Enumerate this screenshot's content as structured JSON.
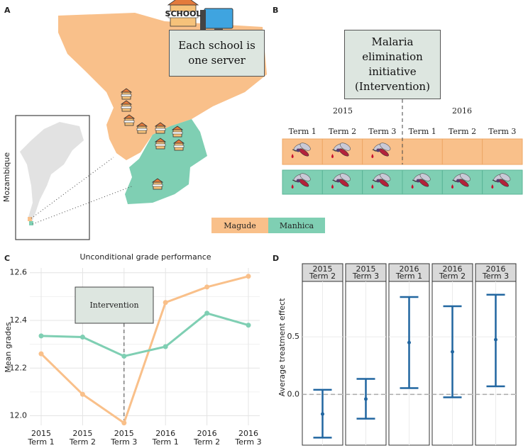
{
  "panel_labels": [
    "A",
    "B",
    "C",
    "D"
  ],
  "map": {
    "country": "Mozambique",
    "school_icon_text": "SCHOOL",
    "callout": "Each school is one server"
  },
  "diagram": {
    "intervention": "Malaria elimination initiative (Intervention)",
    "years": [
      "2015",
      "2016"
    ],
    "terms": [
      "Term 1",
      "Term 2",
      "Term 3",
      "Term 1",
      "Term 2",
      "Term 3"
    ],
    "malaria": [
      [
        true,
        true,
        true,
        false,
        false,
        false
      ],
      [
        true,
        true,
        true,
        true,
        true,
        true
      ]
    ]
  },
  "chart_data": [
    {
      "type": "line",
      "title": "Unconditional grade performance",
      "y_label": "Mean grades",
      "categories": [
        [
          "2015",
          "Term 1"
        ],
        [
          "2015",
          "Term 2"
        ],
        [
          "2015",
          "Term 3"
        ],
        [
          "2016",
          "Term 1"
        ],
        [
          "2016",
          "Term 2"
        ],
        [
          "2016",
          "Term 3"
        ]
      ],
      "series": [
        {
          "name": "Magude",
          "color": "#f9c08a",
          "values": [
            12.26,
            12.09,
            11.97,
            12.475,
            12.54,
            12.585
          ]
        },
        {
          "name": "Manhica",
          "color": "#7fcfb3",
          "values": [
            12.335,
            12.33,
            12.25,
            12.29,
            12.43,
            12.38
          ]
        }
      ],
      "annotation": "Intervention",
      "ylim": [
        11.96,
        12.62
      ],
      "yticks": [
        {
          "value": 12,
          "label": "12.0"
        },
        {
          "value": 12.2,
          "label": "12.2"
        },
        {
          "value": 12.4,
          "label": "12.4"
        },
        {
          "value": 12.6,
          "label": "12.6"
        }
      ],
      "grid": true
    },
    {
      "type": "errorbar",
      "y_label": "Average treatment effect",
      "categories": [
        [
          "2015",
          "Term 2"
        ],
        [
          "2015",
          "Term 3"
        ],
        [
          "2016",
          "Term 1"
        ],
        [
          "2016",
          "Term 2"
        ],
        [
          "2016",
          "Term 3"
        ]
      ],
      "values": [
        -0.17,
        -0.04,
        0.45,
        0.37,
        0.475
      ],
      "lower": [
        -0.375,
        -0.21,
        0.055,
        -0.025,
        0.07
      ],
      "upper": [
        0.04,
        0.135,
        0.845,
        0.765,
        0.865
      ],
      "color": "#2166a0",
      "ylim": [
        -0.44,
        0.98
      ],
      "yticks": [
        {
          "value": 0,
          "label": "0.0"
        },
        {
          "value": 0.5,
          "label": "0.5"
        }
      ],
      "hline": 0,
      "grid": true
    }
  ]
}
